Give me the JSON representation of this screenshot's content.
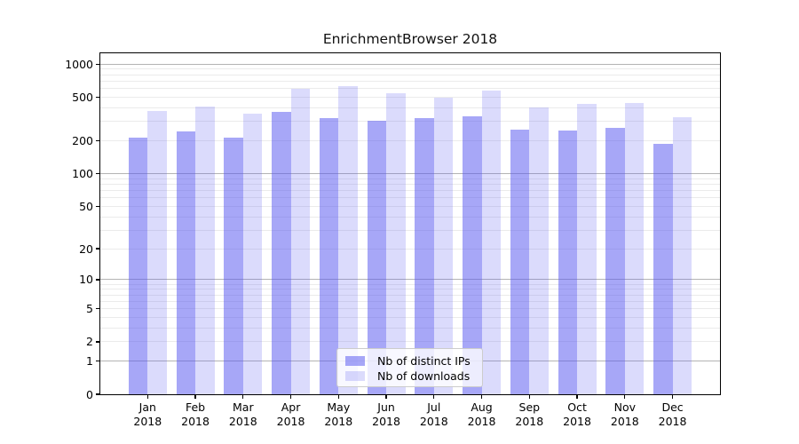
{
  "figure": {
    "title": "EnrichmentBrowser 2018",
    "background_color": "#ffffff"
  },
  "chart_data": {
    "type": "bar",
    "title": "EnrichmentBrowser 2018",
    "xlabel": "",
    "ylabel": "",
    "yscale": "log1p",
    "ylim": [
      0,
      1256
    ],
    "y_tick_labels": [
      1000,
      500,
      200,
      100,
      50,
      20,
      10,
      5,
      2,
      1,
      0
    ],
    "grid_major": [
      1,
      10,
      100,
      1000
    ],
    "grid_minor": [
      2,
      3,
      4,
      5,
      6,
      7,
      8,
      9,
      20,
      30,
      40,
      50,
      60,
      70,
      80,
      90,
      200,
      300,
      400,
      500,
      600,
      700,
      800,
      900
    ],
    "grid_major_color": "#b4b4b4",
    "grid_minor_color": "#ebebeb",
    "x_tick_labels": [
      [
        "Jan",
        "2018"
      ],
      [
        "Feb",
        "2018"
      ],
      [
        "Mar",
        "2018"
      ],
      [
        "Apr",
        "2018"
      ],
      [
        "May",
        "2018"
      ],
      [
        "Jun",
        "2018"
      ],
      [
        "Jul",
        "2018"
      ],
      [
        "Aug",
        "2018"
      ],
      [
        "Sep",
        "2018"
      ],
      [
        "Oct",
        "2018"
      ],
      [
        "Nov",
        "2018"
      ],
      [
        "Dec",
        "2018"
      ]
    ],
    "series": [
      {
        "name": "Nb of distinct IPs",
        "color": "rgba(87,87,240,0.52)",
        "values": [
          215,
          245,
          216,
          370,
          320,
          305,
          320,
          333,
          252,
          248,
          265,
          188
        ]
      },
      {
        "name": "Nb of downloads",
        "color": "rgba(87,87,240,0.21)",
        "values": [
          375,
          410,
          352,
          600,
          630,
          545,
          495,
          572,
          405,
          432,
          440,
          328
        ]
      }
    ],
    "legend": {
      "position": "lower center",
      "entries": [
        "Nb of distinct IPs",
        "Nb of downloads"
      ]
    }
  }
}
